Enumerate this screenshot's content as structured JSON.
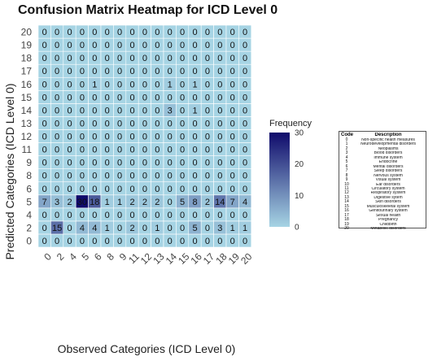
{
  "title": "Confusion Matrix Heatmap for ICD Level 0",
  "chart_data": {
    "type": "heatmap",
    "xlabel": "Observed Categories (ICD Level 0)",
    "ylabel": "Predicted Categories (ICD Level 0)",
    "x_categories": [
      "0",
      "2",
      "4",
      "5",
      "6",
      "8",
      "9",
      "11",
      "12",
      "13",
      "14",
      "15",
      "16",
      "17",
      "18",
      "19",
      "20"
    ],
    "y_categories": [
      "0",
      "2",
      "4",
      "5",
      "6",
      "8",
      "9",
      "11",
      "12",
      "13",
      "14",
      "15",
      "16",
      "17",
      "18",
      "19",
      "20"
    ],
    "matrix": [
      [
        0,
        0,
        0,
        0,
        0,
        0,
        0,
        0,
        0,
        0,
        0,
        0,
        0,
        0,
        0,
        0,
        0
      ],
      [
        0,
        15,
        0,
        4,
        4,
        1,
        0,
        2,
        0,
        1,
        0,
        0,
        5,
        0,
        3,
        1,
        1
      ],
      [
        0,
        0,
        0,
        0,
        0,
        0,
        0,
        0,
        0,
        0,
        0,
        0,
        0,
        0,
        0,
        0,
        0
      ],
      [
        7,
        3,
        2,
        30,
        18,
        1,
        1,
        2,
        2,
        2,
        0,
        5,
        8,
        2,
        14,
        7,
        4
      ],
      [
        0,
        0,
        0,
        0,
        0,
        0,
        0,
        0,
        0,
        0,
        0,
        0,
        0,
        0,
        0,
        0,
        0
      ],
      [
        0,
        0,
        0,
        0,
        0,
        0,
        0,
        0,
        0,
        0,
        0,
        0,
        0,
        0,
        0,
        0,
        0
      ],
      [
        0,
        0,
        0,
        0,
        0,
        0,
        0,
        0,
        0,
        0,
        0,
        0,
        0,
        0,
        0,
        0,
        0
      ],
      [
        0,
        0,
        0,
        0,
        0,
        0,
        0,
        0,
        0,
        0,
        0,
        0,
        0,
        0,
        0,
        0,
        0
      ],
      [
        0,
        0,
        0,
        0,
        0,
        0,
        0,
        0,
        0,
        0,
        0,
        0,
        0,
        0,
        0,
        0,
        0
      ],
      [
        0,
        0,
        0,
        0,
        0,
        0,
        0,
        0,
        0,
        0,
        0,
        0,
        0,
        0,
        0,
        0,
        0
      ],
      [
        0,
        0,
        0,
        0,
        0,
        0,
        0,
        0,
        0,
        0,
        3,
        0,
        1,
        0,
        0,
        0,
        0
      ],
      [
        0,
        0,
        0,
        0,
        0,
        0,
        0,
        0,
        0,
        0,
        0,
        0,
        0,
        0,
        0,
        0,
        0
      ],
      [
        0,
        0,
        0,
        0,
        1,
        0,
        0,
        0,
        0,
        0,
        1,
        0,
        1,
        0,
        0,
        0,
        0
      ],
      [
        0,
        0,
        0,
        0,
        0,
        0,
        0,
        0,
        0,
        0,
        0,
        0,
        0,
        0,
        0,
        0,
        0
      ],
      [
        0,
        0,
        0,
        0,
        0,
        0,
        0,
        0,
        0,
        0,
        0,
        0,
        0,
        0,
        0,
        0,
        0
      ],
      [
        0,
        0,
        0,
        0,
        0,
        0,
        0,
        0,
        0,
        0,
        0,
        0,
        0,
        0,
        0,
        0,
        0
      ],
      [
        0,
        0,
        0,
        0,
        0,
        0,
        0,
        0,
        0,
        0,
        0,
        0,
        0,
        0,
        0,
        0,
        0
      ]
    ],
    "scale": {
      "min": 0,
      "max": 30,
      "low_color": "#a6d4e4",
      "high_color": "#0f0a6b"
    },
    "legend": {
      "title": "Frequency",
      "ticks": [
        "30",
        "20",
        "10",
        "0"
      ],
      "placement": "right"
    },
    "grid": true
  },
  "code_table": {
    "headers": [
      "Code",
      "Description"
    ],
    "rows": [
      [
        "0",
        "Non-specific health measures"
      ],
      [
        "1",
        "Neurodevelopmental disorders"
      ],
      [
        "2",
        "Neoplasms"
      ],
      [
        "3",
        "Blood disorders"
      ],
      [
        "4",
        "Immune system"
      ],
      [
        "5",
        "Endocrine"
      ],
      [
        "6",
        "Mental disorders"
      ],
      [
        "7",
        "Sleep disorders"
      ],
      [
        "8",
        "Nervous system"
      ],
      [
        "9",
        "Visual system"
      ],
      [
        "10",
        "Ear disorders"
      ],
      [
        "11",
        "Circulatory system"
      ],
      [
        "12",
        "Respiratory system"
      ],
      [
        "13",
        "Digestive sytem"
      ],
      [
        "14",
        "Skin disorders"
      ],
      [
        "15",
        "Musculoskeletal system"
      ],
      [
        "16",
        "Genitourinary system"
      ],
      [
        "17",
        "Sexual health"
      ],
      [
        "18",
        "Pregnancy"
      ],
      [
        "19",
        "Childbirth"
      ],
      [
        "20",
        "Metabolic disorders"
      ]
    ]
  }
}
